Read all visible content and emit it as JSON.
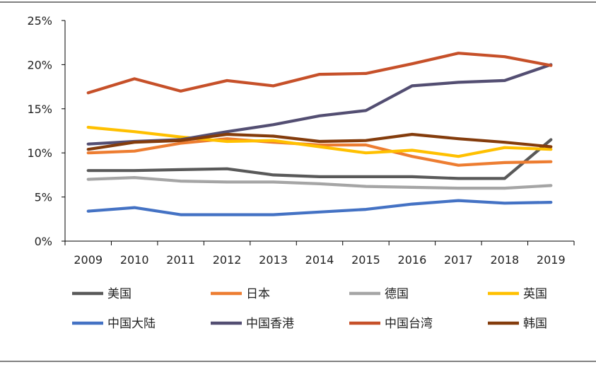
{
  "chart_data": {
    "type": "line",
    "title": "",
    "xlabel": "",
    "ylabel": "",
    "x": [
      "2009",
      "2010",
      "2011",
      "2012",
      "2013",
      "2014",
      "2015",
      "2016",
      "2017",
      "2018",
      "2019"
    ],
    "y_ticks": [
      "0%",
      "5%",
      "10%",
      "15%",
      "20%",
      "25%"
    ],
    "ylim": [
      0,
      25
    ],
    "y_unit": "%",
    "grid": false,
    "legend_position": "bottom",
    "series": [
      {
        "name": "美国",
        "color": "#595959",
        "values": [
          8.0,
          8.0,
          8.1,
          8.2,
          7.5,
          7.3,
          7.3,
          7.3,
          7.1,
          7.1,
          11.5
        ]
      },
      {
        "name": "日本",
        "color": "#ED7D31",
        "values": [
          10.0,
          10.2,
          11.1,
          11.6,
          11.2,
          10.9,
          10.9,
          9.6,
          8.6,
          8.9,
          9.0
        ]
      },
      {
        "name": "德国",
        "color": "#A5A5A5",
        "values": [
          7.0,
          7.2,
          6.8,
          6.7,
          6.7,
          6.5,
          6.2,
          6.1,
          6.0,
          6.0,
          6.3
        ]
      },
      {
        "name": "英国",
        "color": "#FFC000",
        "values": [
          12.9,
          12.4,
          11.8,
          11.3,
          11.4,
          10.7,
          10.0,
          10.3,
          9.6,
          10.6,
          10.4
        ]
      },
      {
        "name": "中国大陆",
        "color": "#4472C4",
        "values": [
          3.4,
          3.8,
          3.0,
          3.0,
          3.0,
          3.3,
          3.6,
          4.2,
          4.6,
          4.3,
          4.4
        ]
      },
      {
        "name": "中国香港",
        "color": "#534E72",
        "values": [
          11.0,
          11.3,
          11.5,
          12.4,
          13.2,
          14.2,
          14.8,
          17.6,
          18.0,
          18.2,
          20.0
        ]
      },
      {
        "name": "中国台湾",
        "color": "#C65029",
        "values": [
          16.8,
          18.4,
          17.0,
          18.2,
          17.6,
          18.9,
          19.0,
          20.1,
          21.3,
          20.9,
          19.9
        ]
      },
      {
        "name": "韩国",
        "color": "#843C0C",
        "values": [
          10.4,
          11.2,
          11.4,
          12.1,
          11.9,
          11.3,
          11.4,
          12.1,
          11.6,
          11.2,
          10.7
        ]
      }
    ]
  }
}
